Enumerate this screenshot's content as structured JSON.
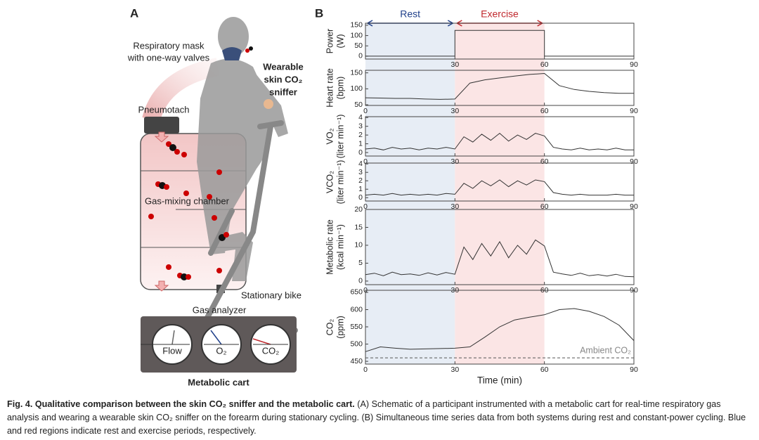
{
  "panel_a": {
    "label": "A",
    "mask_label": [
      "Respiratory mask",
      "with one-way valves"
    ],
    "sniffer_label": [
      "Wearable",
      "skin CO₂",
      "sniffer"
    ],
    "pneumotach": "Pneumotach",
    "chamber": "Gas-mixing chamber",
    "bike": "Stationary bike",
    "analyzer": "Gas analyzer",
    "dials": [
      "Flow",
      "O₂",
      "CO₂"
    ],
    "cart": "Metabolic cart"
  },
  "panel_b_label": "B",
  "regions": [
    {
      "label": "Rest",
      "start": 0,
      "end": 30,
      "color": "#e7edf5",
      "text_color": "#1f3f8a"
    },
    {
      "label": "Exercise",
      "start": 30,
      "end": 60,
      "color": "#fbe5e5",
      "text_color": "#c0282d"
    }
  ],
  "chart_data": [
    {
      "type": "line",
      "ylabel": [
        "Power",
        "(W)"
      ],
      "color": "#333333",
      "x": [
        0,
        30,
        30,
        60,
        60,
        90
      ],
      "values": [
        0,
        0,
        125,
        125,
        0,
        0
      ],
      "xlim": [
        0,
        90
      ],
      "xticks": [
        30,
        60,
        90
      ],
      "ylim": [
        -14,
        160
      ],
      "yticks": [
        0,
        50,
        100,
        150
      ]
    },
    {
      "type": "line",
      "ylabel": [
        "Heart rate",
        "(bpm)"
      ],
      "color": "#333333",
      "x": [
        0,
        5,
        10,
        15,
        20,
        25,
        30,
        35,
        40,
        45,
        50,
        55,
        60,
        65,
        70,
        75,
        80,
        85,
        90
      ],
      "values": [
        72,
        71,
        70,
        70,
        68,
        67,
        68,
        118,
        128,
        134,
        140,
        145,
        148,
        110,
        98,
        92,
        88,
        86,
        86
      ],
      "xlim": [
        0,
        90
      ],
      "xticks": [
        0,
        30,
        60,
        90
      ],
      "ylim": [
        48,
        158
      ],
      "yticks": [
        50,
        100,
        150
      ]
    },
    {
      "type": "line",
      "ylabel": [
        "VO₂",
        "(liter min⁻¹)"
      ],
      "color": "#333333",
      "x": [
        0,
        3,
        6,
        9,
        12,
        15,
        18,
        21,
        24,
        27,
        30,
        33,
        36,
        39,
        42,
        45,
        48,
        51,
        54,
        57,
        60,
        63,
        66,
        69,
        72,
        75,
        78,
        81,
        84,
        87,
        90
      ],
      "values": [
        0.4,
        0.5,
        0.3,
        0.6,
        0.4,
        0.5,
        0.3,
        0.5,
        0.4,
        0.6,
        0.4,
        1.8,
        1.2,
        2.1,
        1.4,
        2.2,
        1.3,
        2.0,
        1.5,
        2.2,
        1.9,
        0.6,
        0.4,
        0.3,
        0.5,
        0.3,
        0.4,
        0.3,
        0.5,
        0.3,
        0.3
      ],
      "xlim": [
        0,
        90
      ],
      "xticks": [
        0,
        30,
        60,
        90
      ],
      "ylim": [
        -0.4,
        4.1
      ],
      "yticks": [
        0,
        1,
        2,
        3,
        4
      ]
    },
    {
      "type": "line",
      "ylabel": [
        "VCO₂",
        "(liter min⁻¹)"
      ],
      "color": "#333333",
      "x": [
        0,
        3,
        6,
        9,
        12,
        15,
        18,
        21,
        24,
        27,
        30,
        33,
        36,
        39,
        42,
        45,
        48,
        51,
        54,
        57,
        60,
        63,
        66,
        69,
        72,
        75,
        78,
        81,
        84,
        87,
        90
      ],
      "values": [
        0.3,
        0.4,
        0.3,
        0.5,
        0.3,
        0.4,
        0.3,
        0.4,
        0.3,
        0.5,
        0.4,
        1.7,
        1.1,
        2.0,
        1.4,
        2.1,
        1.3,
        2.0,
        1.5,
        2.1,
        1.9,
        0.6,
        0.4,
        0.3,
        0.4,
        0.3,
        0.3,
        0.3,
        0.4,
        0.3,
        0.3
      ],
      "xlim": [
        0,
        90
      ],
      "xticks": [
        0,
        30,
        60,
        90
      ],
      "ylim": [
        -0.4,
        4.1
      ],
      "yticks": [
        0,
        1,
        2,
        3,
        4
      ]
    },
    {
      "type": "line",
      "ylabel": [
        "Metabolic rate",
        "(kcal min⁻¹)"
      ],
      "color": "#333333",
      "x": [
        0,
        3,
        6,
        9,
        12,
        15,
        18,
        21,
        24,
        27,
        30,
        33,
        36,
        39,
        42,
        45,
        48,
        51,
        54,
        57,
        60,
        63,
        66,
        69,
        72,
        75,
        78,
        81,
        84,
        87,
        90
      ],
      "values": [
        1.8,
        2.2,
        1.5,
        2.5,
        1.8,
        2.0,
        1.6,
        2.3,
        1.7,
        2.4,
        1.9,
        9.5,
        6.0,
        10.5,
        7.0,
        11.0,
        6.5,
        10.0,
        7.5,
        11.5,
        9.8,
        2.5,
        2.0,
        1.6,
        2.2,
        1.5,
        1.8,
        1.4,
        1.9,
        1.3,
        1.2
      ],
      "xlim": [
        0,
        90
      ],
      "xticks": [
        0,
        30,
        60,
        90
      ],
      "ylim": [
        -1,
        20
      ],
      "yticks": [
        0,
        5,
        10,
        15,
        20
      ]
    },
    {
      "type": "line",
      "ylabel": [
        "CO₂",
        "(ppm)"
      ],
      "xlabel": "Time (min)",
      "color": "#333333",
      "x": [
        0,
        5,
        10,
        15,
        20,
        25,
        30,
        35,
        40,
        45,
        50,
        55,
        60,
        65,
        70,
        75,
        80,
        85,
        90
      ],
      "values": [
        478,
        492,
        488,
        485,
        486,
        487,
        488,
        492,
        520,
        550,
        570,
        578,
        585,
        600,
        603,
        595,
        580,
        555,
        510
      ],
      "reference": {
        "value": 460,
        "label": "Ambient CO₂"
      },
      "xlim": [
        0,
        90
      ],
      "xticks": [
        0,
        30,
        60,
        90
      ],
      "ylim": [
        442,
        656
      ],
      "yticks": [
        450,
        500,
        550,
        600,
        650
      ]
    }
  ],
  "caption": {
    "title": "Fig. 4. Qualitative comparison between the skin CO₂ sniffer and the metabolic cart.",
    "text": "(A) Schematic of a participant instrumented with a metabolic cart for real-time respiratory gas analysis and wearing a wearable skin CO₂ sniffer on the forearm during stationary cycling. (B) Simultaneous time series data from both systems during rest and constant-power cycling. Blue and red regions indicate rest and exercise periods, respectively."
  }
}
